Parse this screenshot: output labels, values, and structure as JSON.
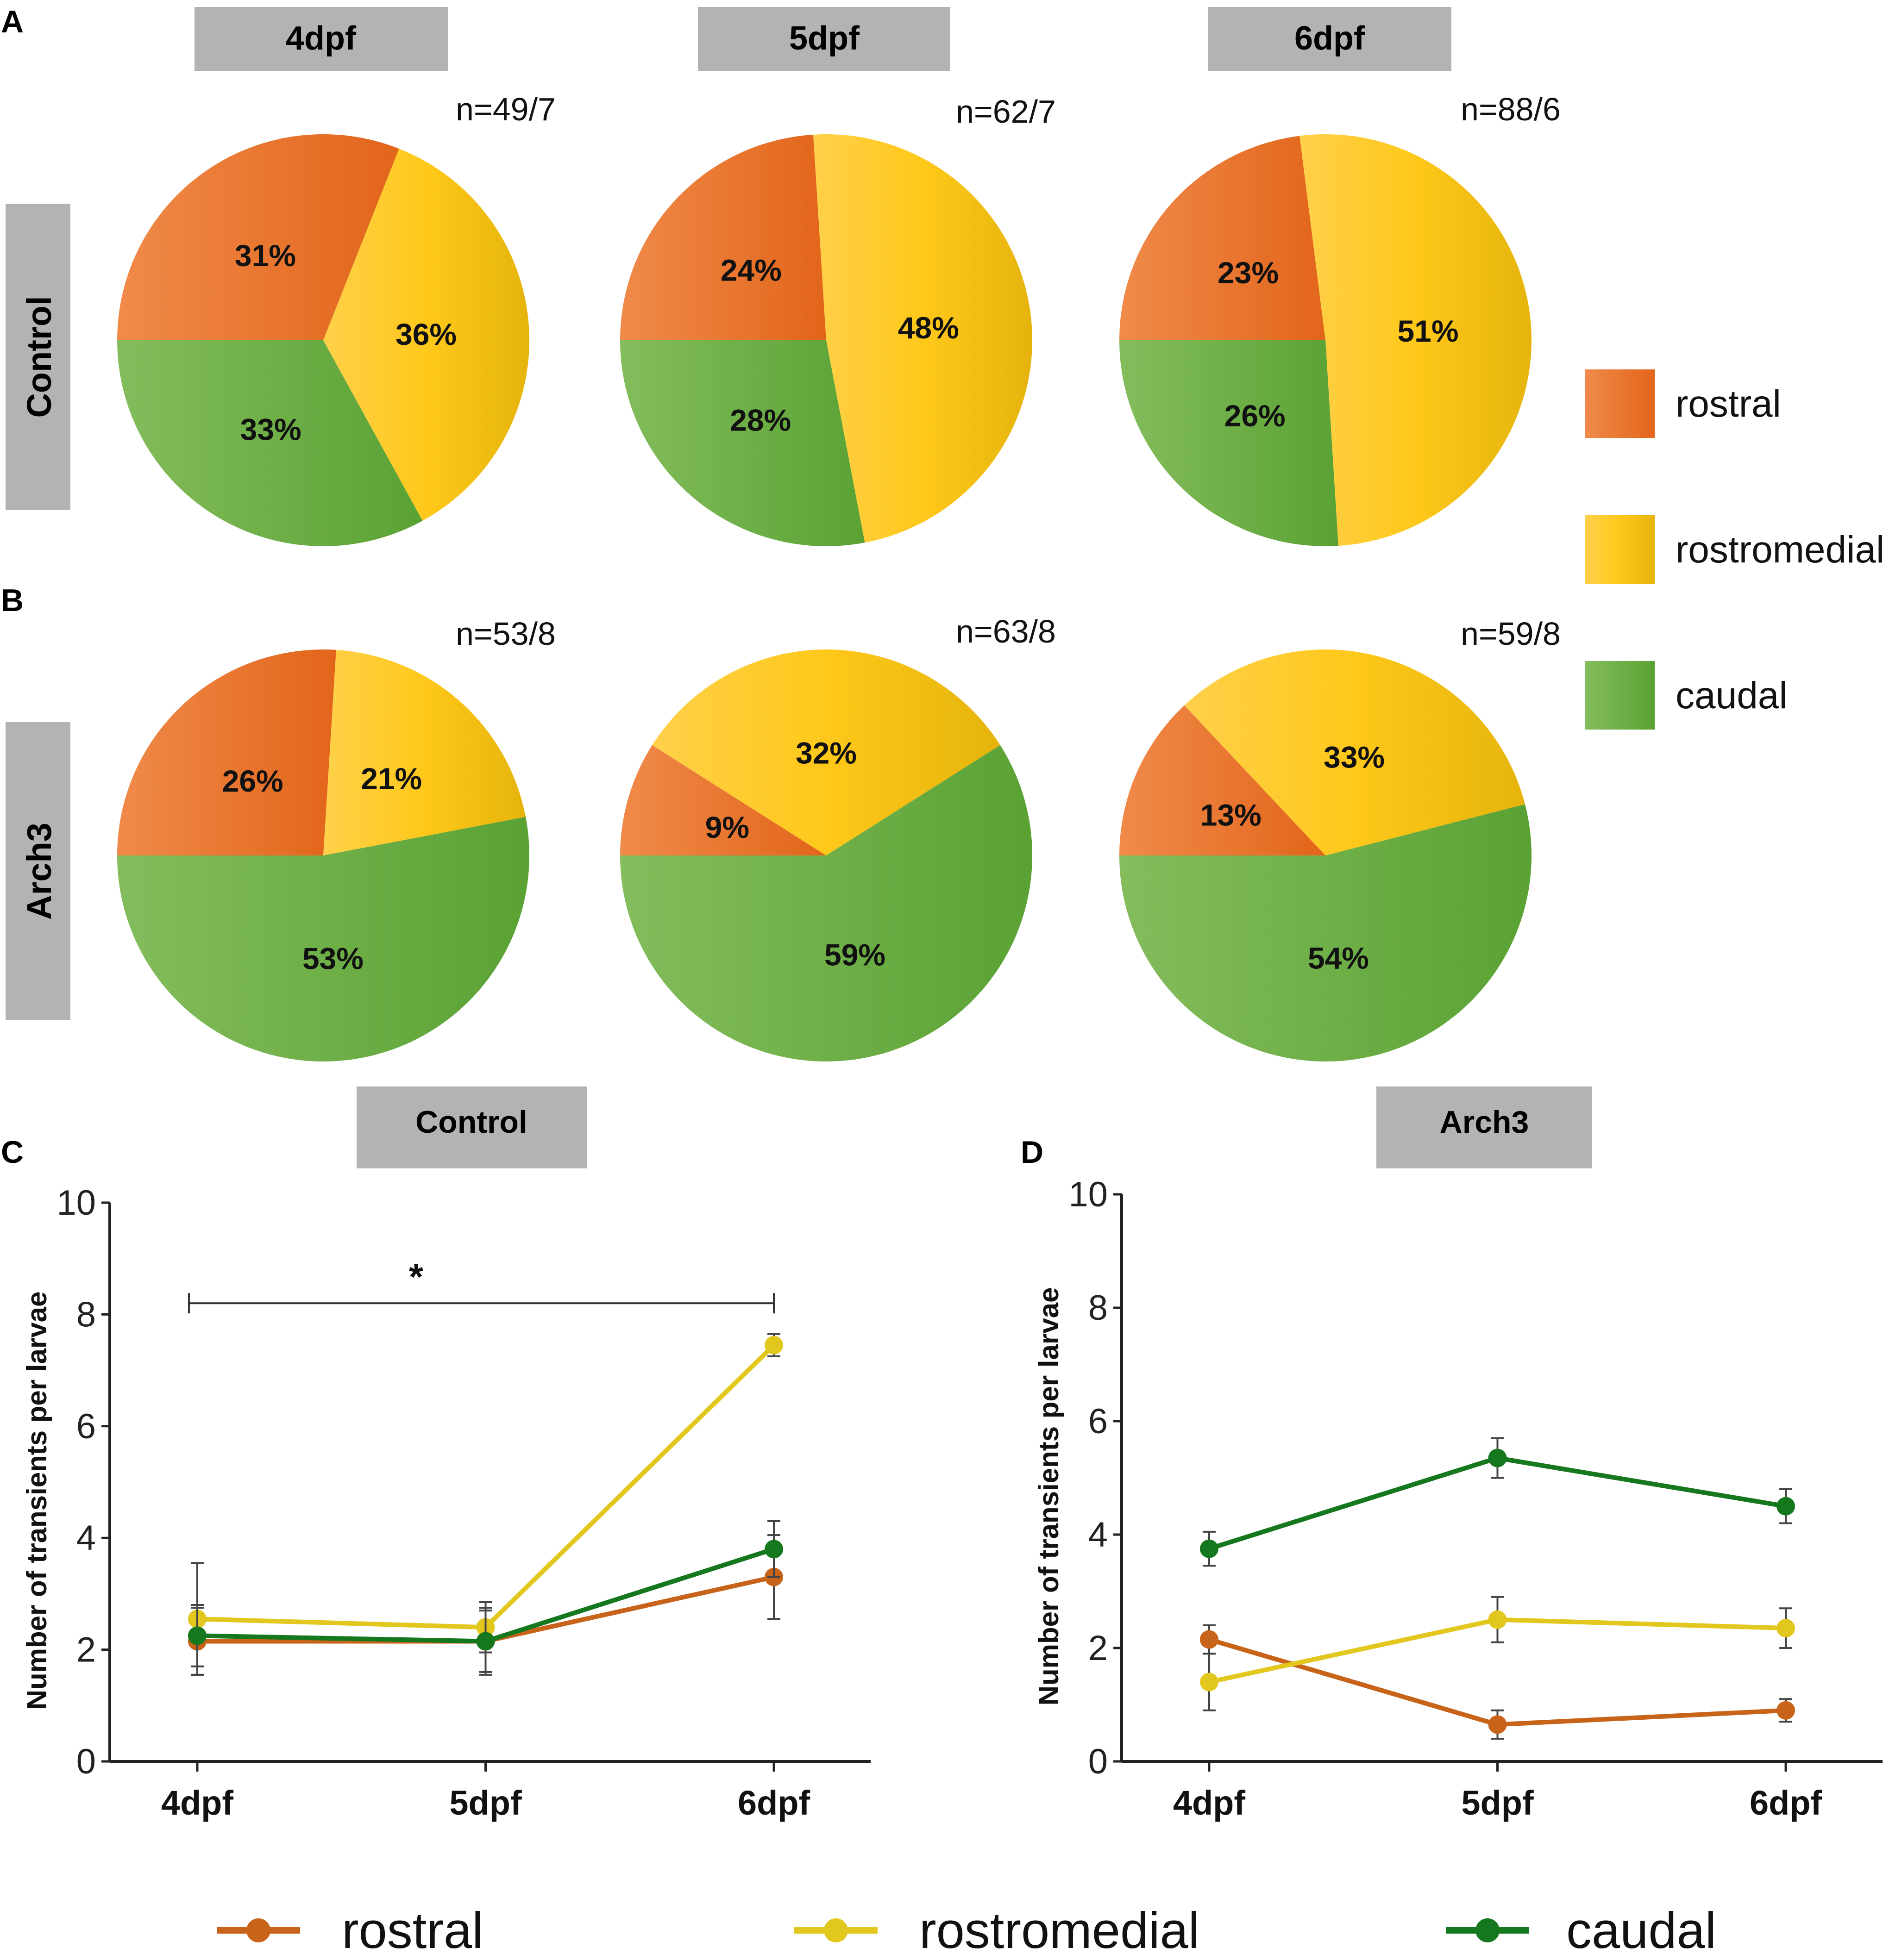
{
  "colors": {
    "rostral": "#e8701e",
    "rostromedial": "#f5c20a",
    "caudal": "#6aae3e",
    "line_rostral": "#c8641a",
    "line_rostromedial": "#e2c81e",
    "line_caudal": "#15781e",
    "header_box": "#b5b3b1"
  },
  "panels": {
    "A": "A",
    "B": "B",
    "C": "C",
    "D": "D"
  },
  "column_headers": [
    "4dpf",
    "5dpf",
    "6dpf"
  ],
  "row_labels": {
    "control": "Control",
    "arch3": "Arch3"
  },
  "legend": {
    "pie": [
      "rostral",
      "rostromedial",
      "caudal"
    ],
    "bottom": [
      "rostral",
      "rostromedial",
      "caudal"
    ]
  },
  "chart_data": [
    {
      "type": "pie",
      "title": "Control 4dpf",
      "n_label": "n=49/7",
      "labels": [
        "rostral",
        "rostromedial",
        "caudal"
      ],
      "values": [
        31,
        36,
        33
      ],
      "value_labels": [
        "31%",
        "36%",
        "33%"
      ]
    },
    {
      "type": "pie",
      "title": "Control 5dpf",
      "n_label": "n=62/7",
      "labels": [
        "rostral",
        "rostromedial",
        "caudal"
      ],
      "values": [
        24,
        48,
        28
      ],
      "value_labels": [
        "24%",
        "48%",
        "28%"
      ]
    },
    {
      "type": "pie",
      "title": "Control 6dpf",
      "n_label": "n=88/6",
      "labels": [
        "rostral",
        "rostromedial",
        "caudal"
      ],
      "values": [
        23,
        51,
        26
      ],
      "value_labels": [
        "23%",
        "51%",
        "26%"
      ]
    },
    {
      "type": "pie",
      "title": "Arch3 4dpf",
      "n_label": "n=53/8",
      "labels": [
        "rostral",
        "rostromedial",
        "caudal"
      ],
      "values": [
        26,
        21,
        53
      ],
      "value_labels": [
        "26%",
        "21%",
        "53%"
      ]
    },
    {
      "type": "pie",
      "title": "Arch3 5dpf",
      "n_label": "n=63/8",
      "labels": [
        "rostral",
        "rostromedial",
        "caudal"
      ],
      "values": [
        9,
        32,
        59
      ],
      "value_labels": [
        "9%",
        "32%",
        "59%"
      ]
    },
    {
      "type": "pie",
      "title": "Arch3 6dpf",
      "n_label": "n=59/8",
      "labels": [
        "rostral",
        "rostromedial",
        "caudal"
      ],
      "values": [
        13,
        33,
        54
      ],
      "value_labels": [
        "13%",
        "33%",
        "54%"
      ]
    },
    {
      "type": "line",
      "title": "Control",
      "categories": [
        "4dpf",
        "5dpf",
        "6dpf"
      ],
      "ylabel": "Number of transients per larvae",
      "ylim": [
        0,
        10
      ],
      "yticks": [
        0,
        2,
        4,
        6,
        8,
        10
      ],
      "significance": {
        "from": "4dpf",
        "to": "6dpf",
        "label": "*",
        "y": 8.2
      },
      "series": [
        {
          "name": "rostral",
          "values": [
            2.15,
            2.15,
            3.3
          ],
          "errors": [
            0.6,
            0.55,
            0.75
          ]
        },
        {
          "name": "rostromedial",
          "values": [
            2.55,
            2.4,
            7.45
          ],
          "errors": [
            1.0,
            0.45,
            0.2
          ]
        },
        {
          "name": "caudal",
          "values": [
            2.25,
            2.15,
            3.8
          ],
          "errors": [
            0.55,
            0.6,
            0.5
          ]
        }
      ]
    },
    {
      "type": "line",
      "title": "Arch3",
      "categories": [
        "4dpf",
        "5dpf",
        "6dpf"
      ],
      "ylabel": "Number of transients per larvae",
      "ylim": [
        0,
        10
      ],
      "yticks": [
        0,
        2,
        4,
        6,
        8,
        10
      ],
      "series": [
        {
          "name": "rostral",
          "values": [
            2.15,
            0.65,
            0.9
          ],
          "errors": [
            0.25,
            0.25,
            0.2
          ]
        },
        {
          "name": "rostromedial",
          "values": [
            1.4,
            2.5,
            2.35
          ],
          "errors": [
            0.5,
            0.4,
            0.35
          ]
        },
        {
          "name": "caudal",
          "values": [
            3.75,
            5.35,
            4.5
          ],
          "errors": [
            0.3,
            0.35,
            0.3
          ]
        }
      ]
    }
  ]
}
